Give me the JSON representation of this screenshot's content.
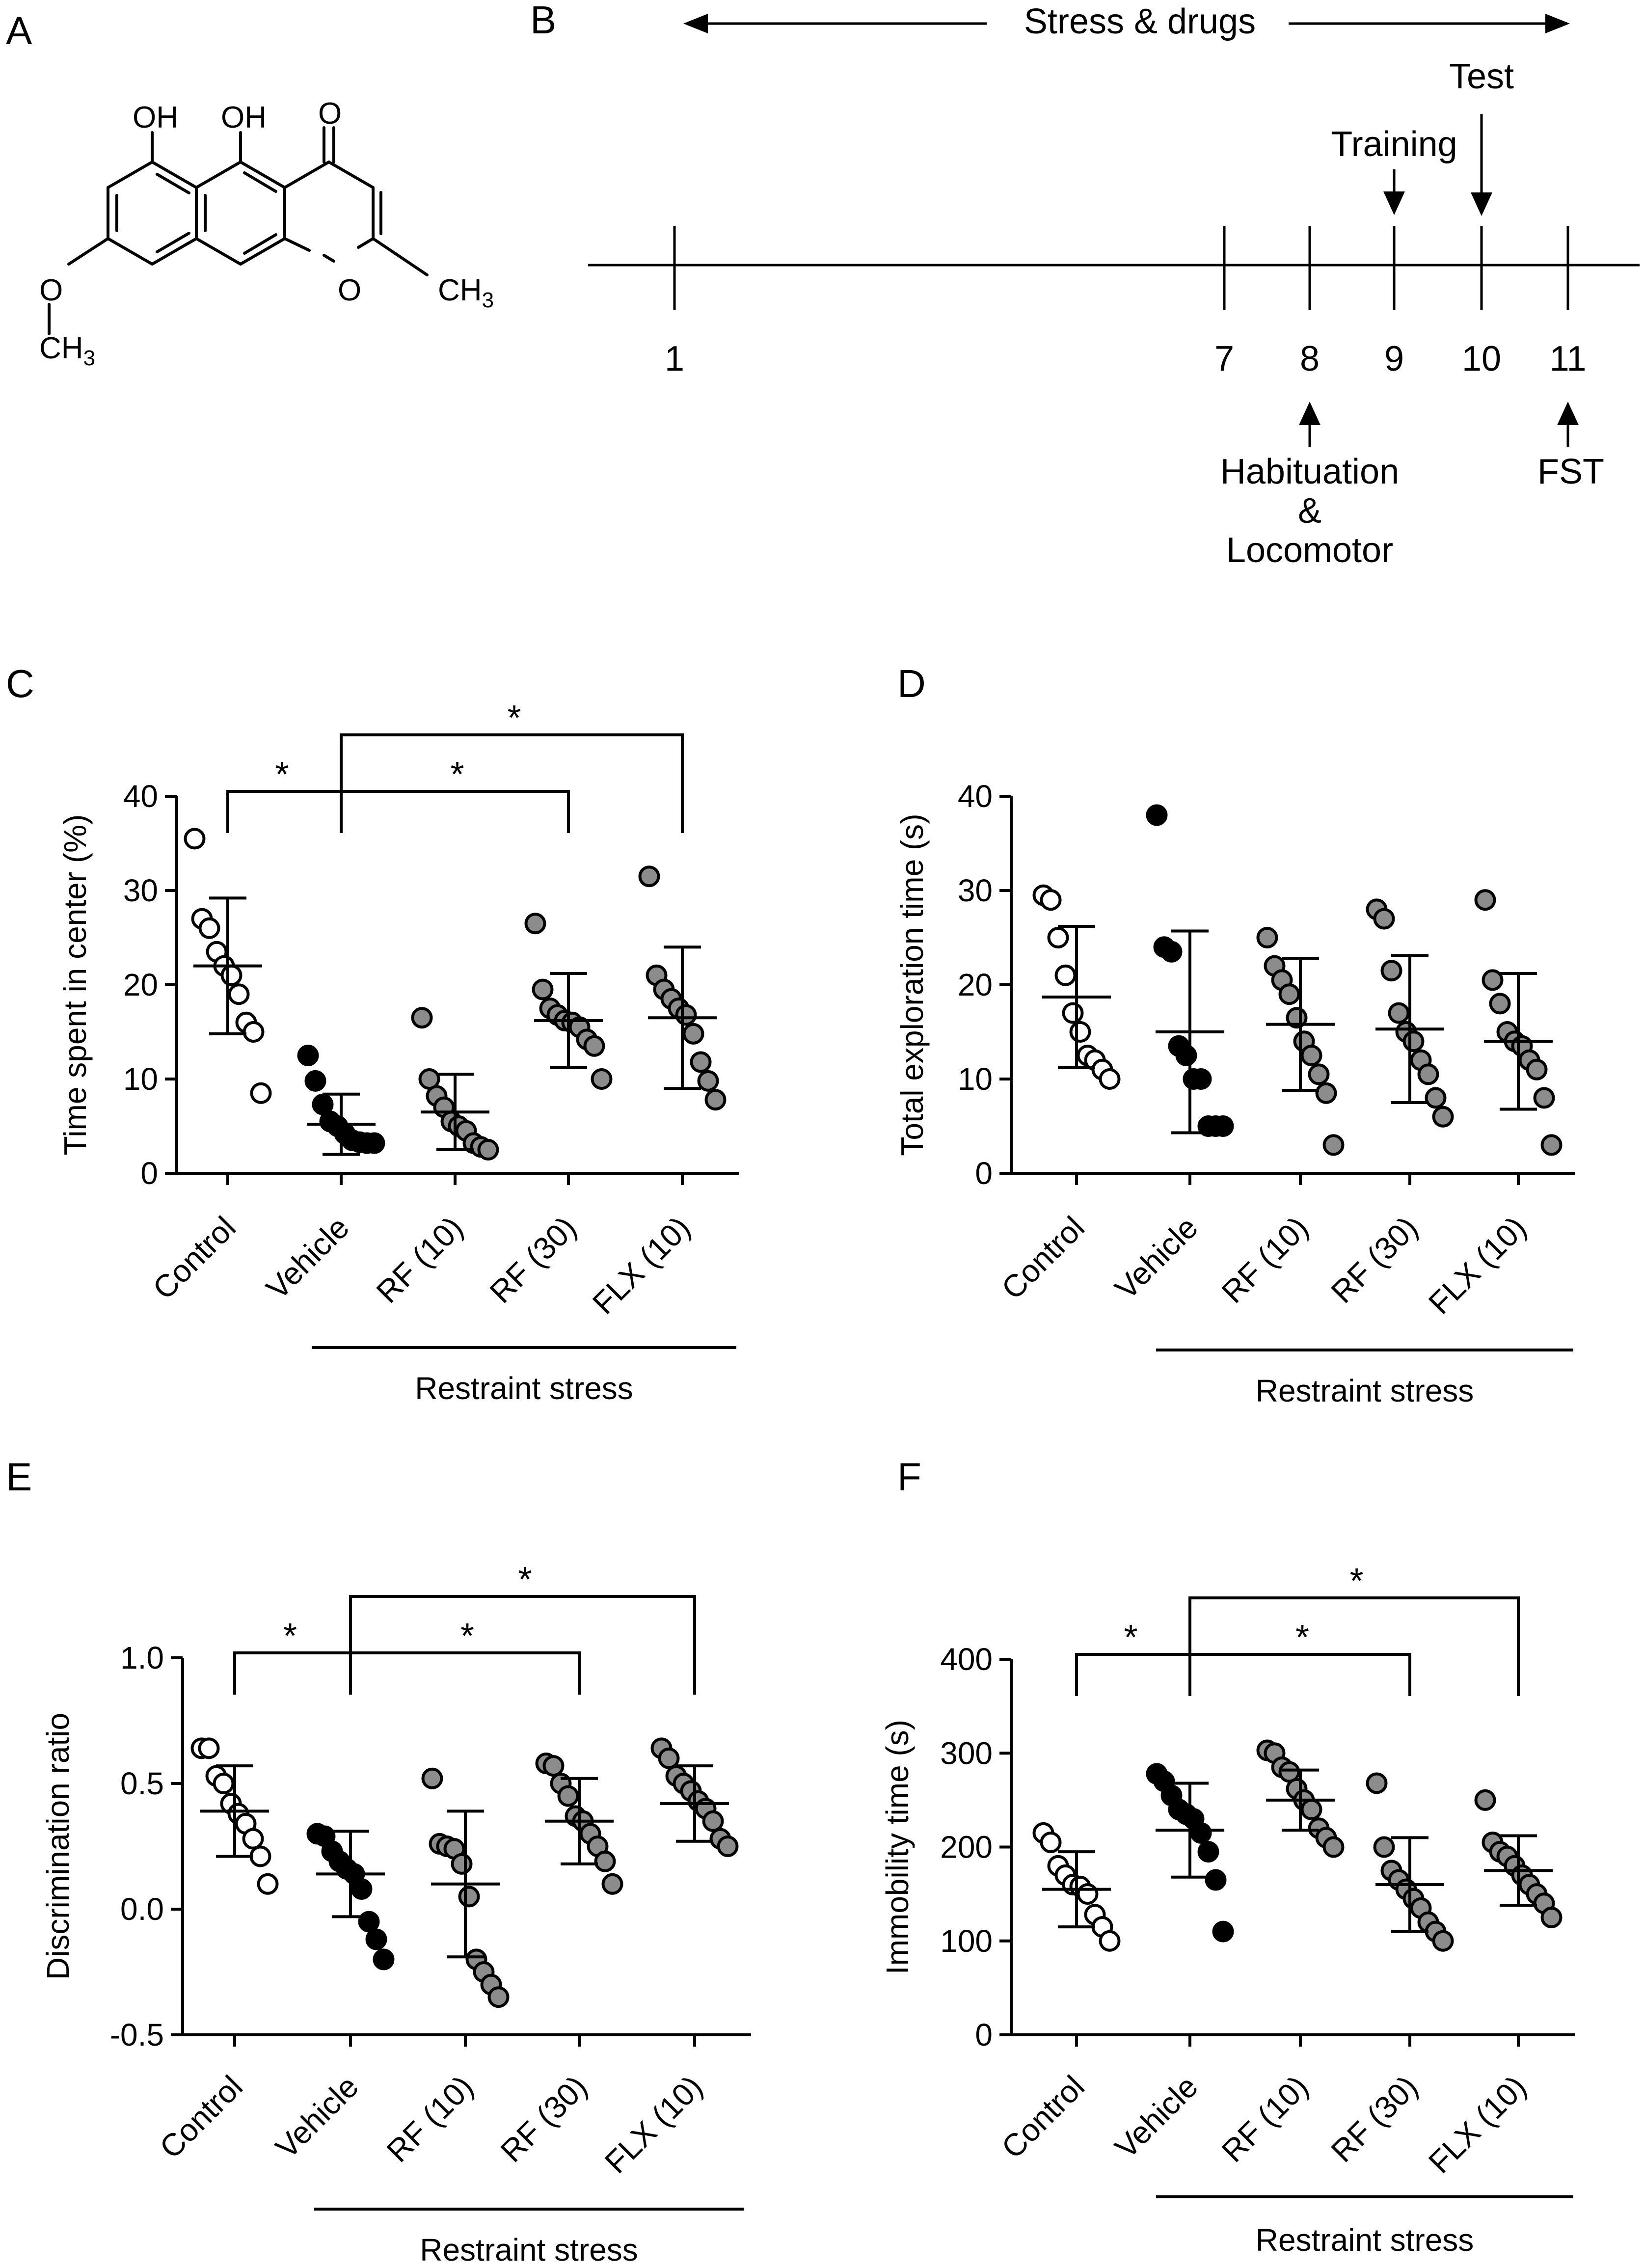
{
  "panel_labels": {
    "A": "A",
    "B": "B",
    "C": "C",
    "D": "D",
    "E": "E",
    "F": "F"
  },
  "panel_a": {
    "oh_1": "OH",
    "oh_2": "OH",
    "o_keto": "O",
    "o_ring": "O",
    "o_methoxy": "O",
    "ch3_right": "CH",
    "ch3_right_sub": "3",
    "ch3_left": "CH",
    "ch3_left_sub": "3"
  },
  "panel_b": {
    "stress_label": "Stress & drugs",
    "days": [
      "1",
      "7",
      "8",
      "9",
      "10",
      "11"
    ],
    "training_label": "Training",
    "test_label": "Test",
    "habituation_line1": "Habituation",
    "habituation_line2": "&",
    "habituation_line3": "Locomotor",
    "fst_label": "FST"
  },
  "colors": {
    "control": "#ffffff",
    "vehicle": "#000000",
    "drug": "#8c8c8c",
    "axis": "#000000"
  },
  "chart_data": [
    {
      "panel": "C",
      "type": "scatter",
      "ylabel": "Time spent in center (%)",
      "ylim": [
        0,
        40
      ],
      "yticks": [
        0,
        10,
        20,
        30,
        40
      ],
      "categories": [
        "Control",
        "Vehicle",
        "RF (10)",
        "RF (30)",
        "FLX (10)"
      ],
      "group_label": "Restraint stress",
      "points": [
        [
          35.5,
          27,
          26,
          23.5,
          22,
          21,
          19,
          16,
          15,
          8.5
        ],
        [
          12.5,
          9.8,
          7.3,
          5.5,
          5,
          4.2,
          3.5,
          3.3,
          3.2,
          3.2
        ],
        [
          16.5,
          10,
          8.2,
          7,
          5.5,
          5,
          4.5,
          3.2,
          2.8,
          2.5
        ],
        [
          26.5,
          19.5,
          17.5,
          16.8,
          16.2,
          16,
          15.5,
          14.2,
          13.5,
          10
        ],
        [
          31.5,
          21,
          19.5,
          18.5,
          17.5,
          16.8,
          14.8,
          11.8,
          9.8,
          7.8
        ]
      ],
      "means": [
        22,
        5.2,
        6.5,
        16.2,
        16.5
      ],
      "errors": [
        7.2,
        3.2,
        4,
        5,
        7.5
      ],
      "significance": [
        {
          "from": "Vehicle",
          "to": "Control",
          "label": "*"
        },
        {
          "from": "Vehicle",
          "to": "RF (30)",
          "label": "*"
        },
        {
          "from": "Vehicle",
          "to": "FLX (10)",
          "label": "*"
        }
      ]
    },
    {
      "panel": "D",
      "type": "scatter",
      "ylabel": "Total exploration time (s)",
      "ylim": [
        0,
        40
      ],
      "yticks": [
        0,
        10,
        20,
        30,
        40
      ],
      "categories": [
        "Control",
        "Vehicle",
        "RF (10)",
        "RF (30)",
        "FLX (10)"
      ],
      "group_label": "Restraint stress",
      "points": [
        [
          29.5,
          29,
          25,
          21,
          17,
          15,
          12.5,
          12,
          11,
          10
        ],
        [
          38,
          24,
          23.5,
          13.5,
          12.5,
          10,
          10,
          5,
          5,
          5
        ],
        [
          25,
          22,
          20.5,
          19,
          16.5,
          14,
          12.5,
          10.5,
          8.5,
          3
        ],
        [
          28,
          27,
          21.5,
          17,
          15,
          14,
          12,
          10.5,
          8,
          6
        ],
        [
          29,
          20.5,
          18,
          15,
          14,
          13.5,
          12,
          11,
          8,
          3
        ]
      ],
      "means": [
        18.7,
        15,
        15.8,
        15.3,
        14
      ],
      "errors": [
        7.5,
        10.7,
        7,
        7.8,
        7.2
      ],
      "significance": []
    },
    {
      "panel": "E",
      "type": "scatter",
      "ylabel": "Discrimination ratio",
      "ylim": [
        -0.5,
        1.0
      ],
      "yticks": [
        -0.5,
        0.0,
        0.5,
        1.0
      ],
      "tick_labels": [
        "-0.5",
        "0.0",
        "0.5",
        "1.0"
      ],
      "categories": [
        "Control",
        "Vehicle",
        "RF (10)",
        "RF (30)",
        "FLX (10)"
      ],
      "group_label": "Restraint stress",
      "points": [
        [
          0.64,
          0.64,
          0.53,
          0.5,
          0.42,
          0.38,
          0.34,
          0.28,
          0.21,
          0.1
        ],
        [
          0.3,
          0.29,
          0.23,
          0.19,
          0.16,
          0.14,
          0.08,
          -0.05,
          -0.12,
          -0.2
        ],
        [
          0.52,
          0.26,
          0.25,
          0.24,
          0.18,
          0.05,
          -0.2,
          -0.25,
          -0.3,
          -0.35
        ],
        [
          0.58,
          0.57,
          0.5,
          0.45,
          0.37,
          0.35,
          0.3,
          0.25,
          0.19,
          0.1
        ],
        [
          0.64,
          0.6,
          0.53,
          0.5,
          0.47,
          0.43,
          0.4,
          0.35,
          0.28,
          0.25
        ]
      ],
      "means": [
        0.39,
        0.14,
        0.1,
        0.35,
        0.42
      ],
      "errors": [
        0.18,
        0.17,
        0.29,
        0.17,
        0.15
      ],
      "significance": [
        {
          "from": "Vehicle",
          "to": "Control",
          "label": "*"
        },
        {
          "from": "Vehicle",
          "to": "RF (30)",
          "label": "*"
        },
        {
          "from": "Vehicle",
          "to": "FLX (10)",
          "label": "*"
        }
      ]
    },
    {
      "panel": "F",
      "type": "scatter",
      "ylabel": "Immobility time (s)",
      "ylim": [
        0,
        400
      ],
      "yticks": [
        0,
        100,
        200,
        300,
        400
      ],
      "categories": [
        "Control",
        "Vehicle",
        "RF (10)",
        "RF (30)",
        "FLX (10)"
      ],
      "group_label": "Restraint stress",
      "points": [
        [
          215,
          205,
          180,
          170,
          160,
          158,
          150,
          128,
          115,
          100
        ],
        [
          278,
          270,
          255,
          240,
          235,
          230,
          215,
          195,
          165,
          110
        ],
        [
          303,
          300,
          285,
          280,
          262,
          250,
          240,
          220,
          210,
          200
        ],
        [
          268,
          200,
          175,
          165,
          155,
          145,
          135,
          120,
          110,
          100
        ],
        [
          250,
          205,
          195,
          190,
          180,
          170,
          160,
          150,
          140,
          125
        ]
      ],
      "means": [
        155,
        218,
        250,
        160,
        175
      ],
      "errors": [
        40,
        50,
        32,
        50,
        37
      ],
      "significance": [
        {
          "from": "Vehicle",
          "to": "Control",
          "label": "*"
        },
        {
          "from": "Vehicle",
          "to": "RF (30)",
          "label": "*"
        },
        {
          "from": "Vehicle",
          "to": "FLX (10)",
          "label": "*"
        }
      ]
    }
  ]
}
